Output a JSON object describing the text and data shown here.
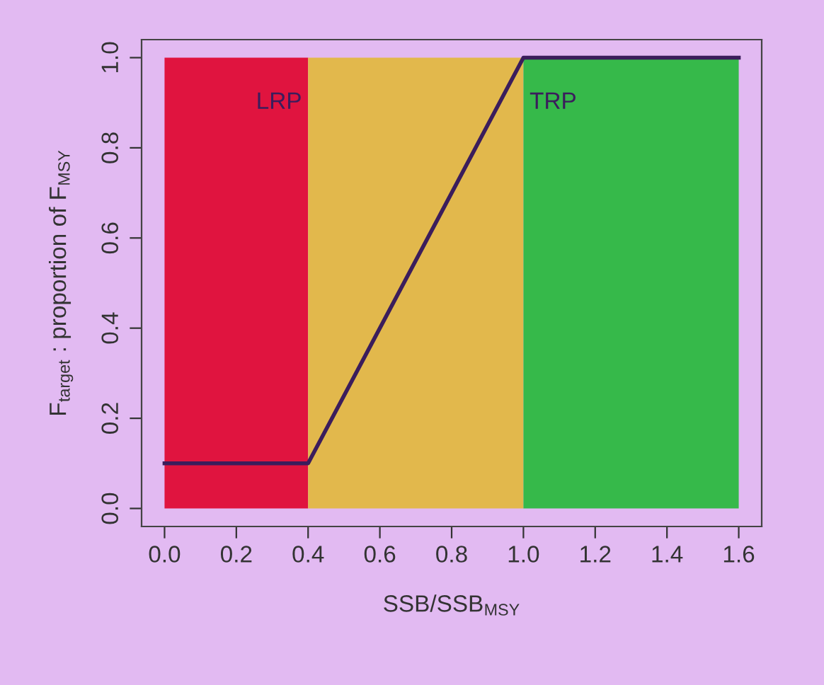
{
  "chart_data": {
    "type": "line",
    "xlabel": "SSB/SSB$_{MSY}$",
    "ylabel": "F$_{target}$ : proportion of F$_{MSY}$",
    "x": [
      0,
      0.4,
      1.0,
      1.6
    ],
    "series": [
      {
        "color": "#3b1d5c",
        "values": [
          0.1,
          0.1,
          1.0,
          1.0
        ]
      }
    ],
    "xlim": [
      -0.064,
      1.664
    ],
    "ylim": [
      -0.04,
      1.04
    ],
    "xticks": [
      {
        "value": 0,
        "label": "0.0"
      },
      0.2,
      0.4,
      0.6,
      0.8,
      {
        "value": 1,
        "label": "1.0"
      },
      1.2,
      1.4,
      1.6
    ],
    "yticks": [
      {
        "value": 0,
        "label": "0.0"
      },
      0.2,
      0.4,
      0.6,
      0.8,
      {
        "value": 1,
        "label": "1.0"
      }
    ],
    "bands": [
      {
        "axis": "x",
        "from": 0,
        "to": 0.4,
        "color": "#e0143f",
        "label": "LRP"
      },
      {
        "axis": "x",
        "from": 0.4,
        "to": 1.0,
        "color": "#e2b84c"
      },
      {
        "axis": "x",
        "from": 1.0,
        "to": 1.6,
        "color": "#36b94a",
        "label": "TRP"
      }
    ],
    "grid": false,
    "legend": false,
    "marker": "none",
    "line_style": "solid"
  }
}
